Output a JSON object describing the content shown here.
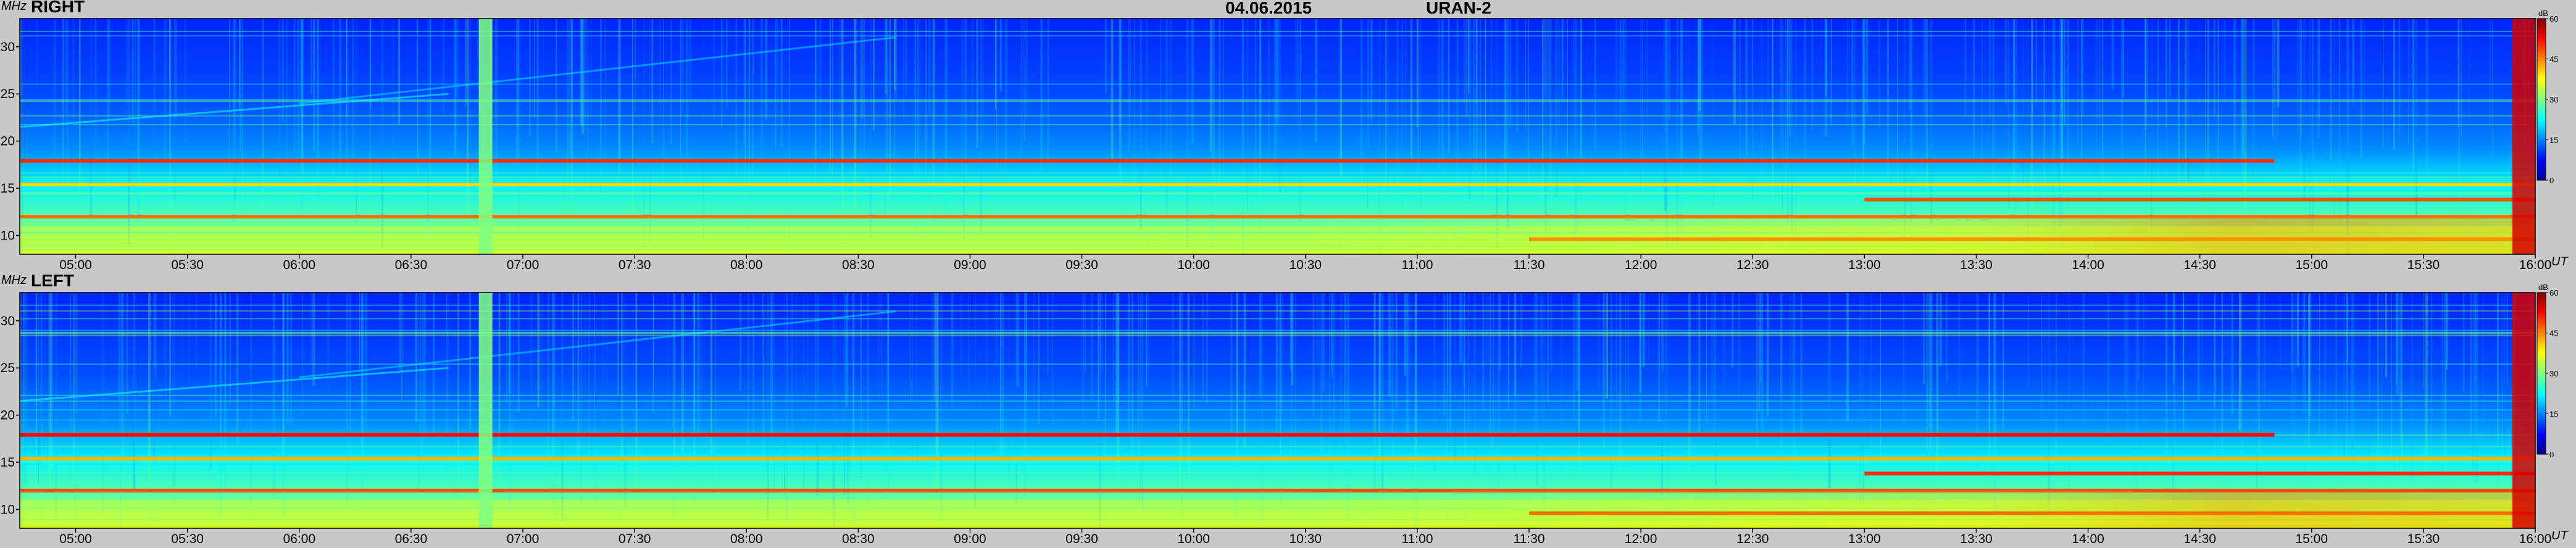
{
  "header": {
    "date": "04.06.2015",
    "instrument": "URAN-2"
  },
  "chart_data": [
    {
      "type": "heatmap",
      "panel": "RIGHT",
      "title": "RIGHT",
      "ylabel": "MHz",
      "xunit": "UT",
      "xlim": [
        "04:45",
        "16:00"
      ],
      "ylim": [
        8,
        33
      ],
      "x_ticks": [
        "05:00",
        "05:30",
        "06:00",
        "06:30",
        "07:00",
        "07:30",
        "08:00",
        "08:30",
        "09:00",
        "09:30",
        "10:00",
        "10:30",
        "11:00",
        "11:30",
        "12:00",
        "12:30",
        "13:00",
        "13:30",
        "14:00",
        "14:30",
        "15:00",
        "15:30",
        "16:00"
      ],
      "y_ticks": [
        10,
        15,
        20,
        25,
        30
      ],
      "colorbar": {
        "unit": "dB",
        "min": 0,
        "max": 60,
        "ticks": [
          0,
          15,
          30,
          45,
          60
        ]
      },
      "features": [
        {
          "kind": "horizontal_band",
          "freq_mhz": 17.9,
          "level_db": 50,
          "from": "04:45",
          "to": "14:50"
        },
        {
          "kind": "horizontal_band",
          "freq_mhz": 15.4,
          "level_db": 40,
          "from": "04:45",
          "to": "16:00"
        },
        {
          "kind": "horizontal_band",
          "freq_mhz": 13.8,
          "level_db": 48,
          "from": "13:00",
          "to": "16:00"
        },
        {
          "kind": "horizontal_band",
          "freq_mhz": 12.0,
          "level_db": 46,
          "from": "04:45",
          "to": "16:00"
        },
        {
          "kind": "horizontal_band",
          "freq_mhz": 9.6,
          "level_db": 44,
          "from": "11:30",
          "to": "16:00"
        },
        {
          "kind": "vertical_burst",
          "time": "06:50",
          "level_db": 30
        },
        {
          "kind": "vertical_burst",
          "time": "15:58",
          "level_db": 55
        }
      ]
    },
    {
      "type": "heatmap",
      "panel": "LEFT",
      "title": "LEFT",
      "ylabel": "MHz",
      "xunit": "UT",
      "xlim": [
        "04:45",
        "16:00"
      ],
      "ylim": [
        8,
        33
      ],
      "x_ticks": [
        "05:00",
        "05:30",
        "06:00",
        "06:30",
        "07:00",
        "07:30",
        "08:00",
        "08:30",
        "09:00",
        "09:30",
        "10:00",
        "10:30",
        "11:00",
        "11:30",
        "12:00",
        "12:30",
        "13:00",
        "13:30",
        "14:00",
        "14:30",
        "15:00",
        "15:30",
        "16:00"
      ],
      "y_ticks": [
        10,
        15,
        20,
        25,
        30
      ],
      "colorbar": {
        "unit": "dB",
        "min": 0,
        "max": 60,
        "ticks": [
          0,
          15,
          30,
          45,
          60
        ]
      },
      "features": [
        {
          "kind": "horizontal_band",
          "freq_mhz": 17.9,
          "level_db": 52,
          "from": "04:45",
          "to": "14:50"
        },
        {
          "kind": "horizontal_band",
          "freq_mhz": 15.4,
          "level_db": 42,
          "from": "04:45",
          "to": "16:00"
        },
        {
          "kind": "horizontal_band",
          "freq_mhz": 13.8,
          "level_db": 50,
          "from": "13:00",
          "to": "16:00"
        },
        {
          "kind": "horizontal_band",
          "freq_mhz": 12.0,
          "level_db": 48,
          "from": "04:45",
          "to": "16:00"
        },
        {
          "kind": "horizontal_band",
          "freq_mhz": 9.6,
          "level_db": 46,
          "from": "11:30",
          "to": "16:00"
        },
        {
          "kind": "vertical_burst",
          "time": "06:50",
          "level_db": 30
        },
        {
          "kind": "vertical_burst",
          "time": "15:58",
          "level_db": 55
        }
      ]
    }
  ]
}
